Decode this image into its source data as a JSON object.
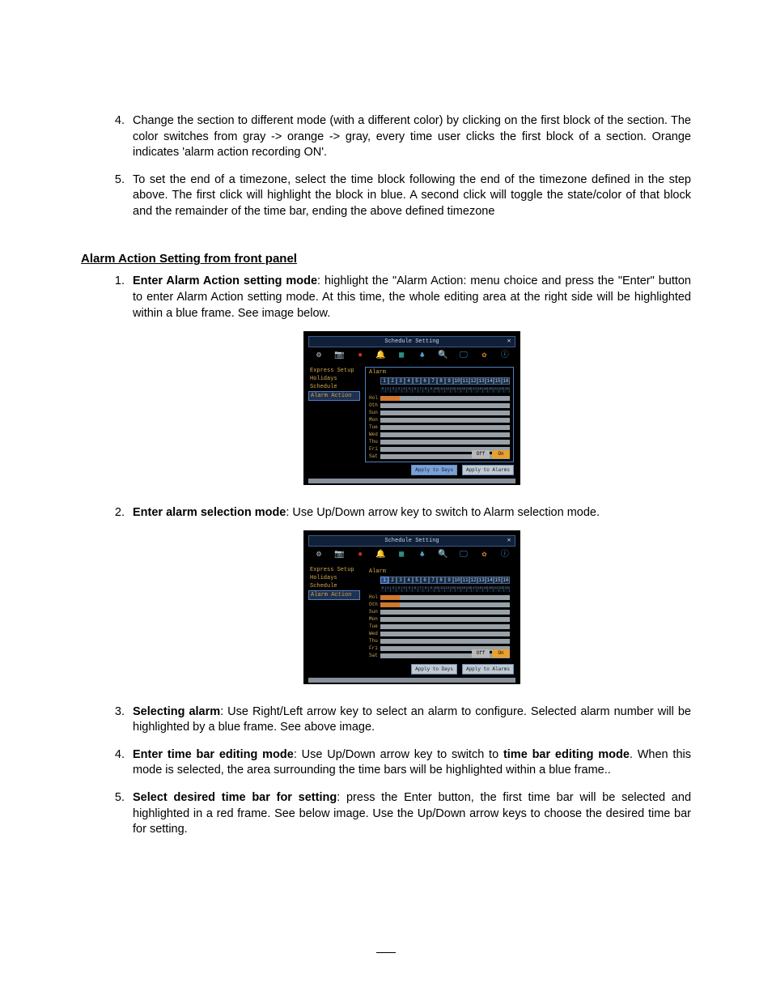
{
  "top_list_start": 4,
  "top_items": [
    "Change the section to different mode (with a different color) by clicking on the first block of the section. The color switches from gray -> orange -> gray, every time user clicks the first block of a section. Orange indicates 'alarm action recording ON'.",
    "To set the end of a timezone, select the time block following the end of the timezone defined in the step above. The first click will highlight the block in blue. A second click will toggle the state/color of that block and the remainder of the time bar, ending the above defined timezone"
  ],
  "heading": "Alarm Action Setting from front panel",
  "steps": [
    {
      "bold": "Enter Alarm Action setting mode",
      "rest": ": highlight the \"Alarm Action: menu choice and press the \"Enter\" button to enter Alarm Action setting mode. At this time, the whole editing area at the right side will be highlighted within a blue frame. See image below."
    },
    {
      "bold": "Enter alarm selection mode",
      "rest": ": Use Up/Down arrow key to switch to Alarm selection mode."
    },
    {
      "bold": "Selecting alarm",
      "rest": ": Use Right/Left arrow key to select an alarm to configure. Selected alarm number will be highlighted by a blue frame. See above image."
    },
    {
      "bold": "Enter time bar editing mode",
      "rest_prefix": ": Use Up/Down arrow key to switch to ",
      "bold2": "time bar editing mode",
      "rest_suffix": ". When this mode is selected, the area surrounding the time bars will be highlighted within a blue frame.."
    },
    {
      "bold": "Select desired time bar for setting",
      "rest": ": press the Enter button, the first time bar will be selected and highlighted in a red frame. See below image. Use the Up/Down arrow keys to choose the desired time bar for setting."
    }
  ],
  "screenshot": {
    "title": "Schedule Setting",
    "close": "✕",
    "icons": [
      {
        "g": "⚙",
        "c": "#b8c8d8"
      },
      {
        "g": "📷",
        "c": "#b8c8d8"
      },
      {
        "g": "●",
        "c": "#c83030"
      },
      {
        "g": "🔔",
        "c": "#e8b838"
      },
      {
        "g": "▦",
        "c": "#38b8a8"
      },
      {
        "g": "♣",
        "c": "#58a8d8"
      },
      {
        "g": "🔍",
        "c": "#d8b858"
      },
      {
        "g": "🖵",
        "c": "#4888d8"
      },
      {
        "g": "✿",
        "c": "#d88838"
      },
      {
        "g": "ⓘ",
        "c": "#4898d8"
      }
    ],
    "sidebar": [
      "Express Setup",
      "Holidays",
      "Schedule",
      "Alarm Action"
    ],
    "sidebar_active_index": 3,
    "alarm_label": "Alarm",
    "alarm_count": 16,
    "days": [
      "Hol",
      "Oth",
      "Sun",
      "Mon",
      "Tue",
      "Wed",
      "Thu",
      "Fri",
      "Sat"
    ],
    "hot_rows_a": [
      0
    ],
    "hot_rows_b": [
      0,
      1
    ],
    "btn_off": "Off",
    "btn_on": "On",
    "btn_apply_days": "Apply to Days",
    "btn_apply_alarms": "Apply to Alarms",
    "colors": {
      "black": "#000000",
      "frame_blue": "#5080c0",
      "text_amber": "#d0a850",
      "bar_gray": "#98a0a8",
      "bar_orange": "#d07830"
    }
  }
}
